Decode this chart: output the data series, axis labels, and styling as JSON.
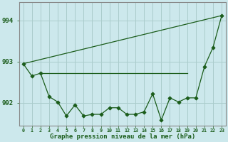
{
  "background_color": "#cce8ec",
  "grid_color": "#aacccc",
  "line_color": "#1a5c1a",
  "text_color": "#1a5c1a",
  "title": "Graphe pression niveau de la mer (hPa)",
  "ylim": [
    991.45,
    994.45
  ],
  "yticks": [
    992,
    993,
    994
  ],
  "xlim": [
    -0.5,
    23.5
  ],
  "series_main": {
    "x": [
      0,
      1,
      2,
      3,
      4,
      5,
      6,
      7,
      8,
      9,
      10,
      11,
      12,
      13,
      14,
      15,
      16,
      17,
      18,
      19,
      20,
      21,
      22,
      23
    ],
    "y": [
      992.95,
      992.65,
      992.72,
      992.15,
      992.02,
      991.68,
      991.95,
      991.68,
      991.72,
      991.72,
      991.88,
      991.88,
      991.72,
      991.72,
      991.78,
      992.22,
      991.58,
      992.12,
      992.02,
      992.12,
      992.12,
      992.88,
      993.35,
      994.12
    ]
  },
  "series_upper": {
    "x": [
      0,
      23
    ],
    "y": [
      992.95,
      994.12
    ]
  },
  "series_flat": {
    "x": [
      2,
      19
    ],
    "y": [
      992.72,
      992.72
    ]
  }
}
